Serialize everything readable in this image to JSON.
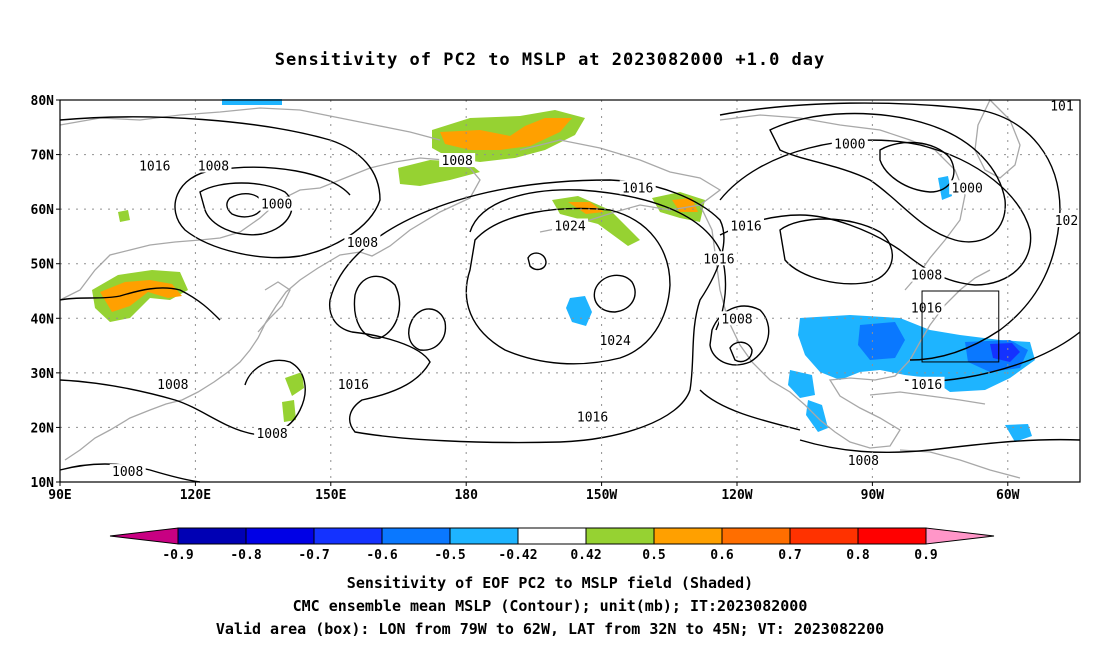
{
  "title": "Sensitivity of PC2 to MSLP at 2023082000 +1.0 day",
  "lat_labels": [
    "80N",
    "70N",
    "60N",
    "50N",
    "40N",
    "30N",
    "20N",
    "10N"
  ],
  "lon_labels": [
    "90E",
    "120E",
    "150E",
    "180",
    "150W",
    "120W",
    "90W",
    "60W"
  ],
  "isobars": [
    {
      "text": "1016",
      "lon": 111,
      "lat": 68
    },
    {
      "text": "1008",
      "lon": 124,
      "lat": 68
    },
    {
      "text": "1000",
      "lon": 138,
      "lat": 61
    },
    {
      "text": "1008",
      "lon": 178,
      "lat": 69
    },
    {
      "text": "1008",
      "lon": 157,
      "lat": 54
    },
    {
      "text": "1024",
      "lon": -157,
      "lat": 57
    },
    {
      "text": "1016",
      "lon": -142,
      "lat": 64
    },
    {
      "text": "1016",
      "lon": -118,
      "lat": 57
    },
    {
      "text": "1016",
      "lon": -124,
      "lat": 51
    },
    {
      "text": "1000",
      "lon": -95,
      "lat": 72
    },
    {
      "text": "1000",
      "lon": -69,
      "lat": 64
    },
    {
      "text": "1008",
      "lon": -78,
      "lat": 48
    },
    {
      "text": "1016",
      "lon": -78,
      "lat": 42
    },
    {
      "text": "1008",
      "lon": -120,
      "lat": 40
    },
    {
      "text": "1024",
      "lon": -147,
      "lat": 36
    },
    {
      "text": "1016",
      "lon": 155,
      "lat": 28
    },
    {
      "text": "1016",
      "lon": -152,
      "lat": 22
    },
    {
      "text": "1016",
      "lon": -78,
      "lat": 28
    },
    {
      "text": "1008",
      "lon": 115,
      "lat": 28
    },
    {
      "text": "1008",
      "lon": 137,
      "lat": 19
    },
    {
      "text": "1008",
      "lon": 105,
      "lat": 12
    },
    {
      "text": "1008",
      "lon": -92,
      "lat": 14
    },
    {
      "text": "101",
      "lon": -48,
      "lat": 79
    },
    {
      "text": "102",
      "lon": -47,
      "lat": 58
    }
  ],
  "valid_box": {
    "lon_min": -79,
    "lon_max": -62,
    "lat_min": 32,
    "lat_max": 45
  },
  "colorbar": {
    "labels": [
      "-0.9",
      "-0.8",
      "-0.7",
      "-0.6",
      "-0.5",
      "-0.42",
      "0.42",
      "0.5",
      "0.6",
      "0.7",
      "0.8",
      "0.9"
    ],
    "colors": [
      "#0000b4",
      "#0000e6",
      "#1432ff",
      "#0a78ff",
      "#1eb4ff",
      "#ffffff",
      "#96d232",
      "#ffa000",
      "#ff6e00",
      "#ff3200",
      "#ff0000"
    ],
    "low_color": "#c80082",
    "high_color": "#ff96c8"
  },
  "caption": [
    "Sensitivity of EOF PC2 to MSLP field (Shaded)",
    "CMC ensemble mean MSLP (Contour); unit(mb); IT:2023082000",
    "Valid area (box): LON from 79W to 62W, LAT from 32N to 45N; VT: 2023082200"
  ]
}
